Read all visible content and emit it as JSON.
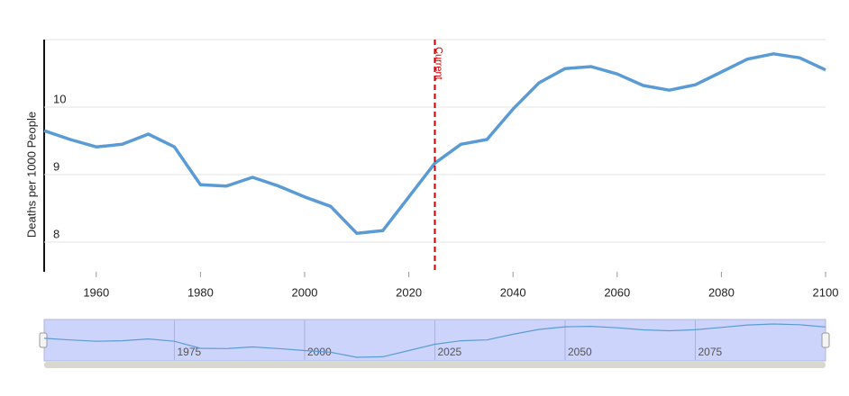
{
  "chart_data": {
    "type": "line",
    "y_label": "Deaths per 1000 People",
    "x": [
      1950,
      1955,
      1960,
      1965,
      1970,
      1975,
      1980,
      1985,
      1990,
      1995,
      2000,
      2005,
      2010,
      2015,
      2020,
      2025,
      2030,
      2035,
      2040,
      2045,
      2050,
      2055,
      2060,
      2065,
      2070,
      2075,
      2080,
      2085,
      2090,
      2095,
      2100
    ],
    "values": [
      9.65,
      9.52,
      9.41,
      9.45,
      9.6,
      9.41,
      8.85,
      8.83,
      8.96,
      8.83,
      8.67,
      8.53,
      8.13,
      8.17,
      8.67,
      9.17,
      9.45,
      9.52,
      9.97,
      10.36,
      10.57,
      10.6,
      10.49,
      10.32,
      10.25,
      10.33,
      10.52,
      10.71,
      10.79,
      10.73,
      10.55
    ],
    "color": "#5b9bd5",
    "xlim": [
      1950,
      2100
    ],
    "xticks": [
      1960,
      1980,
      2000,
      2020,
      2040,
      2060,
      2080,
      2100
    ],
    "ylim": [
      7.56,
      11
    ],
    "yticks": [
      8,
      9,
      10
    ],
    "grid": true,
    "annotations": [
      {
        "x": 2025,
        "label": "Current",
        "color": "#cc0000"
      }
    ],
    "navigator_xticks": [
      1975,
      2000,
      2025,
      2050,
      2075
    ]
  }
}
